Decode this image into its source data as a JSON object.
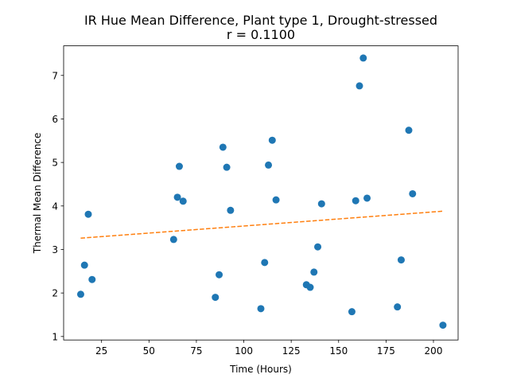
{
  "chart_data": {
    "type": "scatter",
    "title": "IR Hue Mean Difference, Plant type 1, Drought-stressed",
    "subtitle": "r = 0.1100",
    "xlabel": "Time (Hours)",
    "ylabel": "Thermal Mean Difference",
    "xlim": [
      5,
      213
    ],
    "ylim": [
      0.92,
      7.68
    ],
    "xticks": [
      25,
      50,
      75,
      100,
      125,
      150,
      175,
      200
    ],
    "yticks": [
      1,
      2,
      3,
      4,
      5,
      6,
      7
    ],
    "xtick_labels": [
      "25",
      "50",
      "75",
      "100",
      "125",
      "150",
      "175",
      "200"
    ],
    "ytick_labels": [
      "1",
      "2",
      "3",
      "4",
      "5",
      "6",
      "7"
    ],
    "grid": false,
    "series": [
      {
        "kind": "points",
        "color": "#1f77b4",
        "points": [
          [
            14,
            1.97
          ],
          [
            16,
            2.64
          ],
          [
            18,
            3.81
          ],
          [
            20,
            2.31
          ],
          [
            63,
            3.23
          ],
          [
            65,
            4.2
          ],
          [
            66,
            4.91
          ],
          [
            68,
            4.11
          ],
          [
            85,
            1.9
          ],
          [
            87,
            2.42
          ],
          [
            89,
            5.35
          ],
          [
            91,
            4.89
          ],
          [
            93,
            3.9
          ],
          [
            109,
            1.64
          ],
          [
            111,
            2.7
          ],
          [
            113,
            4.94
          ],
          [
            115,
            5.51
          ],
          [
            117,
            4.14
          ],
          [
            133,
            2.19
          ],
          [
            135,
            2.13
          ],
          [
            137,
            2.48
          ],
          [
            139,
            3.06
          ],
          [
            141,
            4.05
          ],
          [
            157,
            1.57
          ],
          [
            159,
            4.12
          ],
          [
            161,
            6.76
          ],
          [
            163,
            7.4
          ],
          [
            165,
            4.18
          ],
          [
            181,
            1.68
          ],
          [
            183,
            2.76
          ],
          [
            187,
            5.74
          ],
          [
            189,
            4.28
          ],
          [
            205,
            1.26
          ]
        ]
      },
      {
        "kind": "trend",
        "color": "#ff7f0e",
        "line_style": "dashed",
        "points": [
          [
            14,
            3.26
          ],
          [
            205,
            3.88
          ]
        ]
      }
    ]
  }
}
